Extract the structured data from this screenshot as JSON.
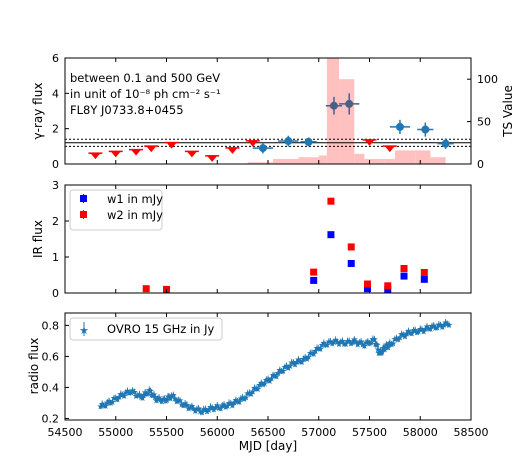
{
  "chart_data": [
    {
      "type": "scatter",
      "panel": "gamma",
      "ylabel": "γ-ray flux",
      "y2label": "TS Value",
      "xlim": [
        54500,
        58500
      ],
      "ylim": [
        0,
        6
      ],
      "y2lim": [
        0,
        125
      ],
      "yticks": [
        0,
        2,
        4,
        6
      ],
      "y2ticks": [
        0,
        50,
        100
      ],
      "annotations": [
        "between 0.1 and 500 GeV",
        "in unit of 10⁻⁸ ph cm⁻² s⁻¹",
        "FL8Y J0733.8+0455"
      ],
      "mean_level": 1.2,
      "band": [
        1.0,
        1.4
      ],
      "colors": {
        "upper_limit": "#ff0000",
        "detection": "#1f77b4",
        "ts": "#ffc0c0"
      },
      "upper_limits": {
        "x": [
          54800,
          55000,
          55200,
          55350,
          55550,
          55750,
          55950,
          56150,
          56350
        ],
        "y": [
          0.5,
          0.6,
          0.7,
          0.9,
          1.1,
          0.6,
          0.35,
          0.8,
          1.2
        ]
      },
      "ts_bins": {
        "edges": [
          56300,
          56550,
          56800,
          57000,
          57080,
          57200,
          57350,
          57450,
          57650,
          57750,
          57950,
          58100,
          58250
        ],
        "values": [
          2,
          6,
          8,
          10,
          125,
          100,
          12,
          6,
          6,
          16,
          16,
          8
        ]
      },
      "detections": {
        "x": [
          56450,
          56700,
          56900,
          57150,
          57300,
          57800,
          58050,
          58250
        ],
        "y": [
          0.9,
          1.3,
          1.25,
          3.3,
          3.4,
          2.1,
          1.95,
          1.15
        ],
        "xerr": [
          100,
          100,
          80,
          80,
          100,
          100,
          80,
          80
        ],
        "yerr": [
          0.3,
          0.3,
          0.25,
          0.5,
          0.6,
          0.4,
          0.4,
          0.3
        ]
      },
      "late_upper_limits": {
        "x": [
          57500,
          57700
        ],
        "y": [
          1.25,
          0.9
        ]
      }
    },
    {
      "type": "scatter",
      "panel": "ir",
      "ylabel": "IR flux",
      "xlim": [
        54500,
        58500
      ],
      "ylim": [
        0,
        3
      ],
      "yticks": [
        0,
        1,
        2,
        3
      ],
      "series": [
        {
          "name": "w1 in mJy",
          "color": "#0000ff",
          "x": [
            56950,
            57120,
            57320,
            57480,
            57680,
            57840,
            58040
          ],
          "y": [
            0.35,
            1.62,
            0.82,
            0.12,
            0.1,
            0.47,
            0.38
          ]
        },
        {
          "name": "w2 in mJy",
          "color": "#ff0000",
          "x": [
            55300,
            55500,
            56950,
            57120,
            57320,
            57480,
            57680,
            57840,
            58040
          ],
          "y": [
            0.12,
            0.1,
            0.58,
            2.55,
            1.28,
            0.25,
            0.2,
            0.68,
            0.57
          ]
        }
      ]
    },
    {
      "type": "scatter",
      "panel": "radio",
      "ylabel": "radio flux",
      "xlabel": "MJD [day]",
      "xlim": [
        54500,
        58500
      ],
      "ylim": [
        0.19,
        0.88
      ],
      "yticks": [
        0.2,
        0.4,
        0.6,
        0.8
      ],
      "xticks": [
        54500,
        55000,
        55500,
        56000,
        56500,
        57000,
        57500,
        58000,
        58500
      ],
      "series": [
        {
          "name": "OVRO 15 GHz in Jy",
          "color": "#1f77b4",
          "x": [
            54850,
            54950,
            55050,
            55150,
            55250,
            55330,
            55400,
            55480,
            55550,
            55650,
            55750,
            55850,
            55950,
            56050,
            56150,
            56250,
            56350,
            56450,
            56550,
            56650,
            56750,
            56850,
            56950,
            57050,
            57150,
            57250,
            57350,
            57450,
            57550,
            57600,
            57650,
            57700,
            57800,
            57900,
            58000,
            58100,
            58200,
            58300
          ],
          "y": [
            0.28,
            0.31,
            0.35,
            0.38,
            0.34,
            0.38,
            0.33,
            0.32,
            0.35,
            0.3,
            0.27,
            0.25,
            0.27,
            0.28,
            0.3,
            0.33,
            0.38,
            0.43,
            0.47,
            0.52,
            0.56,
            0.58,
            0.63,
            0.68,
            0.7,
            0.69,
            0.7,
            0.68,
            0.71,
            0.62,
            0.66,
            0.68,
            0.73,
            0.76,
            0.77,
            0.79,
            0.8,
            0.82
          ]
        }
      ]
    }
  ]
}
